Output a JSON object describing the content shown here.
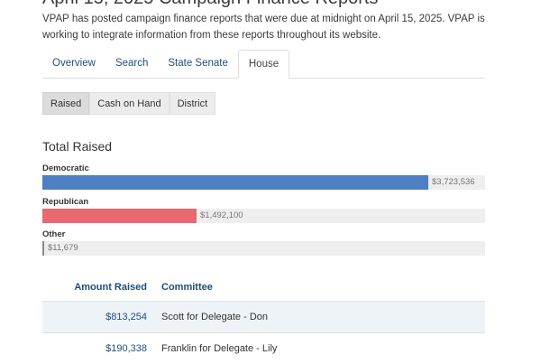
{
  "page": {
    "title": "April 15, 2025 Campaign Finance Reports",
    "intro": "VPAP has posted campaign finance reports that were due at midnight on April 15, 2025. VPAP is working to integrate information from these reports throughout its website."
  },
  "tabs": [
    {
      "label": "Overview",
      "active": false
    },
    {
      "label": "Search",
      "active": false
    },
    {
      "label": "State Senate",
      "active": false
    },
    {
      "label": "House",
      "active": true
    }
  ],
  "toggle": [
    {
      "label": "Raised",
      "active": true
    },
    {
      "label": "Cash on Hand",
      "active": false
    },
    {
      "label": "District",
      "active": false
    }
  ],
  "section_title": "Total Raised",
  "chart_data": {
    "type": "bar",
    "orientation": "horizontal",
    "title": "Total Raised",
    "categories": [
      "Democratic",
      "Republican",
      "Other"
    ],
    "values": [
      3723536,
      1492100,
      11679
    ],
    "value_labels": [
      "$3,723,536",
      "$1,492,100",
      "$11,679"
    ],
    "colors": [
      "#4e7fc2",
      "#e8696f",
      "#8a8a8a"
    ],
    "xlim": [
      0,
      4272000
    ]
  },
  "table": {
    "headers": {
      "amount": "Amount Raised",
      "committee": "Committee"
    },
    "rows": [
      {
        "amount": "$813,254",
        "committee": "Scott for Delegate - Don"
      },
      {
        "amount": "$190,338",
        "committee": "Franklin for Delegate - Lily"
      }
    ]
  }
}
